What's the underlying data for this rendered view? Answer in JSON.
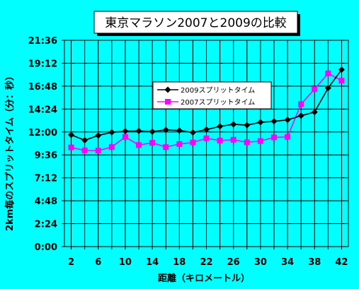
{
  "chart_data": {
    "type": "line",
    "title": "東京マラソン2007と2009の比較",
    "xlabel": "距離（キロメートル）",
    "ylabel": "2km毎のスプリットタイム（分：秒）",
    "x_ticks": [
      "2",
      "6",
      "10",
      "14",
      "18",
      "22",
      "26",
      "30",
      "34",
      "38",
      "42"
    ],
    "x_tick_values": [
      2,
      6,
      10,
      14,
      18,
      22,
      26,
      30,
      34,
      38,
      42
    ],
    "y_ticks": [
      "0:00",
      "2:24",
      "4:48",
      "7:12",
      "9:36",
      "12:00",
      "14:24",
      "16:48",
      "19:12",
      "21:36"
    ],
    "y_tick_seconds": [
      0,
      144,
      288,
      432,
      576,
      720,
      864,
      1008,
      1152,
      1296
    ],
    "xlim": [
      1,
      43
    ],
    "ylim_seconds": [
      0,
      1296
    ],
    "grid": true,
    "legend_position": "upper-center",
    "x": [
      2,
      4,
      6,
      8,
      10,
      12,
      14,
      16,
      18,
      20,
      22,
      24,
      26,
      28,
      30,
      32,
      34,
      36,
      38,
      40,
      42
    ],
    "series": [
      {
        "name": "2009スプリットタイム",
        "color": "#000000",
        "marker": "diamond",
        "values_seconds": [
          702,
          668,
          698,
          718,
          725,
          726,
          722,
          733,
          729,
          717,
          735,
          755,
          768,
          763,
          781,
          787,
          796,
          822,
          845,
          996,
          1111
        ]
      },
      {
        "name": "2007スプリットタイム",
        "color": "#ff00ff",
        "marker": "square",
        "values_seconds": [
          623,
          604,
          603,
          625,
          689,
          638,
          652,
          625,
          644,
          654,
          680,
          666,
          671,
          655,
          663,
          686,
          689,
          895,
          989,
          1088,
          1042
        ]
      }
    ]
  }
}
